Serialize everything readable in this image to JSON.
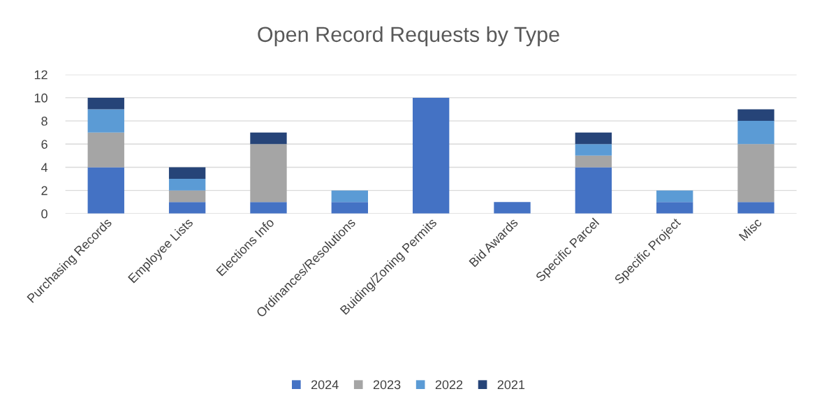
{
  "chart_data": {
    "type": "bar",
    "title": "Open Record Requests by Type",
    "stacked": true,
    "categories": [
      "Purchasing Records",
      "Employee Lists",
      "Elections Info",
      "Ordinances/Resolutions",
      "Buiding/Zoning Permits",
      "Bid Awards",
      "Specific Parcel",
      "Specific Project",
      "Misc"
    ],
    "series": [
      {
        "name": "2024",
        "color": "#4472c4",
        "values": [
          4,
          1,
          1,
          1,
          10,
          1,
          4,
          1,
          1
        ]
      },
      {
        "name": "2023",
        "color": "#a5a5a5",
        "values": [
          3,
          1,
          5,
          0,
          0,
          0,
          1,
          0,
          5
        ]
      },
      {
        "name": "2022",
        "color": "#5b9bd5",
        "values": [
          2,
          1,
          0,
          1,
          0,
          0,
          1,
          1,
          2
        ]
      },
      {
        "name": "2021",
        "color": "#264478",
        "values": [
          1,
          1,
          1,
          0,
          0,
          0,
          1,
          0,
          1
        ]
      }
    ],
    "ylim": [
      0,
      12
    ],
    "yticks": [
      0,
      2,
      4,
      6,
      8,
      10,
      12
    ],
    "grid": "y",
    "legend": "bottom"
  }
}
